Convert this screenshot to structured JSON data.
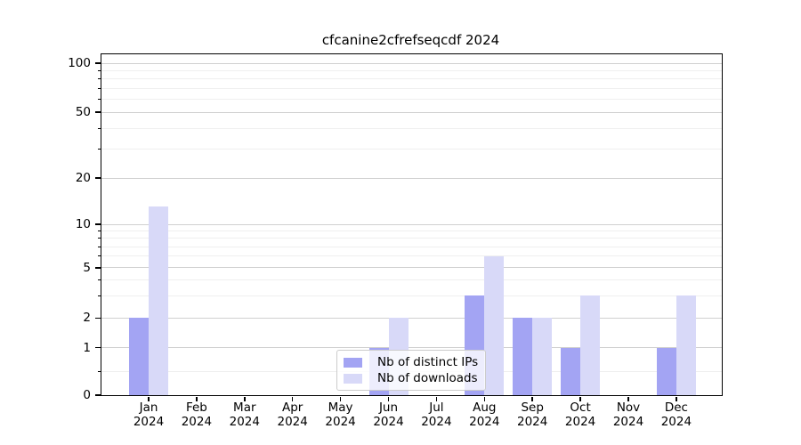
{
  "chart_data": {
    "type": "bar",
    "title": "cfcanine2cfrefseqcdf 2024",
    "categories": [
      "Jan",
      "Feb",
      "Mar",
      "Apr",
      "May",
      "Jun",
      "Jul",
      "Aug",
      "Sep",
      "Oct",
      "Nov",
      "Dec"
    ],
    "year_label": "2024",
    "series": [
      {
        "name": "Nb of distinct IPs",
        "color": "#a3a4f3",
        "values": [
          2,
          0,
          0,
          0,
          0,
          1,
          0,
          3,
          2,
          1,
          0,
          1
        ]
      },
      {
        "name": "Nb of downloads",
        "color": "#d8d9f8",
        "values": [
          13,
          0,
          0,
          0,
          0,
          2,
          0,
          6,
          2,
          3,
          0,
          3
        ]
      }
    ],
    "xlabel": "",
    "ylabel": "",
    "yscale": "symlog-like",
    "ylim": [
      0,
      113
    ],
    "yticks": [
      0,
      1,
      2,
      5,
      10,
      20,
      50,
      100
    ],
    "y_minor_ticks": [
      0.5,
      3,
      4,
      6,
      7,
      8,
      9,
      30,
      40,
      60,
      70,
      80,
      90
    ],
    "grid": true,
    "legend_position": "lower center",
    "colors": {
      "grid_major": "#d0d0d0",
      "grid_minor": "#efefef",
      "axis": "#000000",
      "background": "#ffffff"
    }
  }
}
